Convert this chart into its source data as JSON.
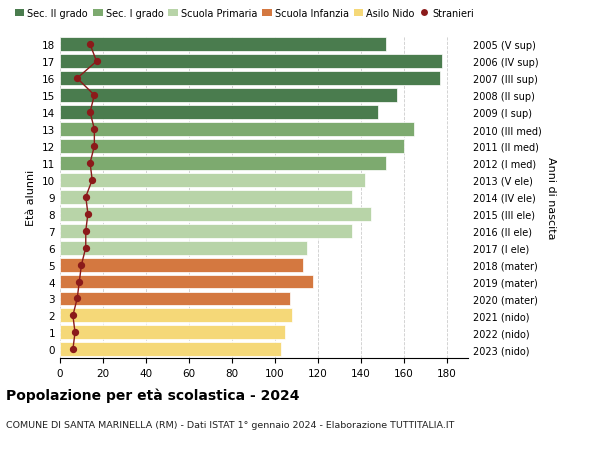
{
  "ages": [
    18,
    17,
    16,
    15,
    14,
    13,
    12,
    11,
    10,
    9,
    8,
    7,
    6,
    5,
    4,
    3,
    2,
    1,
    0
  ],
  "right_labels": [
    "2005 (V sup)",
    "2006 (IV sup)",
    "2007 (III sup)",
    "2008 (II sup)",
    "2009 (I sup)",
    "2010 (III med)",
    "2011 (II med)",
    "2012 (I med)",
    "2013 (V ele)",
    "2014 (IV ele)",
    "2015 (III ele)",
    "2016 (II ele)",
    "2017 (I ele)",
    "2018 (mater)",
    "2019 (mater)",
    "2020 (mater)",
    "2021 (nido)",
    "2022 (nido)",
    "2023 (nido)"
  ],
  "bar_values": [
    152,
    178,
    177,
    157,
    148,
    165,
    160,
    152,
    142,
    136,
    145,
    136,
    115,
    113,
    118,
    107,
    108,
    105,
    103
  ],
  "bar_colors": [
    "#4a7c4e",
    "#4a7c4e",
    "#4a7c4e",
    "#4a7c4e",
    "#4a7c4e",
    "#7daa6f",
    "#7daa6f",
    "#7daa6f",
    "#b8d4a8",
    "#b8d4a8",
    "#b8d4a8",
    "#b8d4a8",
    "#b8d4a8",
    "#d47840",
    "#d47840",
    "#d47840",
    "#f5d878",
    "#f5d878",
    "#f5d878"
  ],
  "stranieri_values": [
    14,
    17,
    8,
    16,
    14,
    16,
    16,
    14,
    15,
    12,
    13,
    12,
    12,
    10,
    9,
    8,
    6,
    7,
    6
  ],
  "stranieri_color": "#8b1a1a",
  "xlim": [
    0,
    190
  ],
  "xticks": [
    0,
    20,
    40,
    60,
    80,
    100,
    120,
    140,
    160,
    180
  ],
  "ylabel": "Età alunni",
  "right_ylabel": "Anni di nascita",
  "title": "Popolazione per età scolastica - 2024",
  "subtitle": "COMUNE DI SANTA MARINELLA (RM) - Dati ISTAT 1° gennaio 2024 - Elaborazione TUTTITALIA.IT",
  "legend_labels": [
    "Sec. II grado",
    "Sec. I grado",
    "Scuola Primaria",
    "Scuola Infanzia",
    "Asilo Nido",
    "Stranieri"
  ],
  "legend_colors": [
    "#4a7c4e",
    "#7daa6f",
    "#b8d4a8",
    "#d47840",
    "#f5d878",
    "#8b1a1a"
  ],
  "bg_color": "#ffffff",
  "grid_color": "#cccccc"
}
